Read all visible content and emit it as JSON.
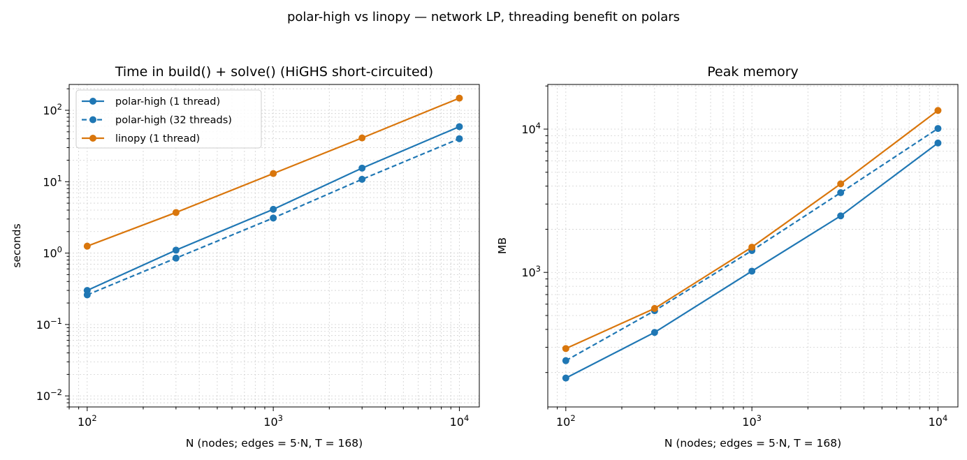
{
  "figure": {
    "suptitle": "polar-high vs linopy — network LP, threading benefit on polars"
  },
  "colors": {
    "blue": "#1f77b4",
    "orange": "#d9760c",
    "grid": "#d0d0d0"
  },
  "chart_data": [
    {
      "type": "line",
      "title": "Time in build() + solve()  (HiGHS short-circuited)",
      "xlabel": "N (nodes; edges = 5·N, T = 168)",
      "ylabel": "seconds",
      "xscale": "log",
      "yscale": "log",
      "xlim": [
        80,
        12800
      ],
      "ylim": [
        0.007,
        230
      ],
      "xticks": [
        {
          "value": 100,
          "base": "10",
          "exp": "2"
        },
        {
          "value": 1000,
          "base": "10",
          "exp": "3"
        },
        {
          "value": 10000,
          "base": "10",
          "exp": "4"
        }
      ],
      "yticks": [
        {
          "value": 0.01,
          "base": "10",
          "exp": "−2"
        },
        {
          "value": 0.1,
          "base": "10",
          "exp": "−1"
        },
        {
          "value": 1,
          "base": "10",
          "exp": "0"
        },
        {
          "value": 10,
          "base": "10",
          "exp": "1"
        },
        {
          "value": 100,
          "base": "10",
          "exp": "2"
        }
      ],
      "grid": true,
      "legend": "top-left",
      "x": [
        100,
        300,
        1000,
        3000,
        10000
      ],
      "series": [
        {
          "name": "polar-high (1 thread)",
          "style": "solid",
          "color": "#1f77b4",
          "values": [
            0.3,
            1.1,
            4.1,
            15.5,
            59
          ]
        },
        {
          "name": "polar-high (32 threads)",
          "style": "dashed",
          "color": "#1f77b4",
          "values": [
            0.26,
            0.85,
            3.1,
            10.8,
            40
          ]
        },
        {
          "name": "linopy (1 thread)",
          "style": "solid",
          "color": "#d9760c",
          "values": [
            1.25,
            3.7,
            13,
            41,
            148
          ]
        }
      ]
    },
    {
      "type": "line",
      "title": "Peak memory",
      "xlabel": "N (nodes; edges = 5·N, T = 168)",
      "ylabel": "MB",
      "xscale": "log",
      "yscale": "log",
      "xlim": [
        80,
        12800
      ],
      "ylim": [
        115,
        20500
      ],
      "xticks": [
        {
          "value": 100,
          "base": "10",
          "exp": "2"
        },
        {
          "value": 1000,
          "base": "10",
          "exp": "3"
        },
        {
          "value": 10000,
          "base": "10",
          "exp": "4"
        }
      ],
      "yticks": [
        {
          "value": 1000,
          "base": "10",
          "exp": "3"
        },
        {
          "value": 10000,
          "base": "10",
          "exp": "4"
        }
      ],
      "grid": true,
      "x": [
        100,
        300,
        1000,
        3000,
        10000
      ],
      "series": [
        {
          "name": "polar-high (1 thread)",
          "style": "solid",
          "color": "#1f77b4",
          "values": [
            183,
            381,
            1020,
            2480,
            8000
          ]
        },
        {
          "name": "polar-high (32 threads)",
          "style": "dashed",
          "color": "#1f77b4",
          "values": [
            242,
            540,
            1420,
            3600,
            10100
          ]
        },
        {
          "name": "linopy (1 thread)",
          "style": "solid",
          "color": "#d9760c",
          "values": [
            294,
            560,
            1500,
            4150,
            13500
          ]
        }
      ]
    }
  ]
}
